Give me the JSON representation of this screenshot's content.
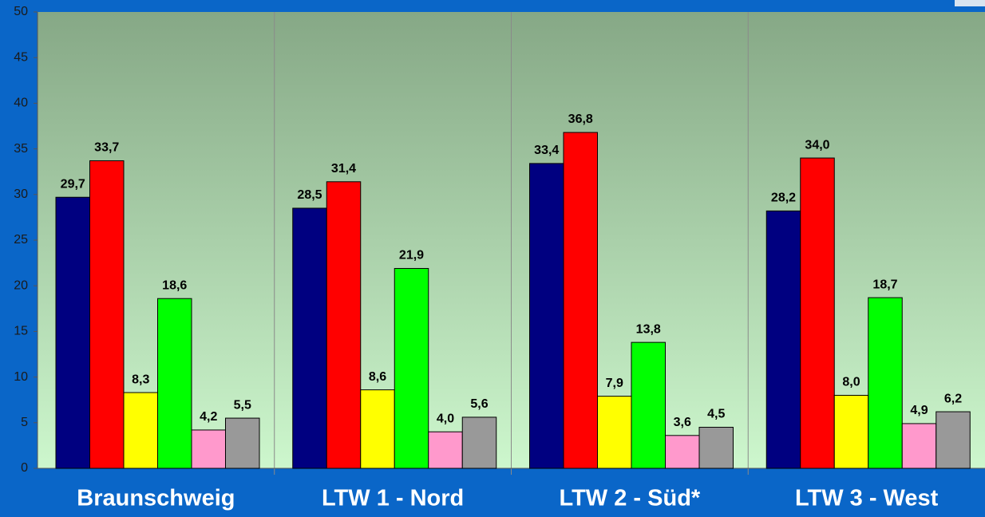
{
  "chart_data": {
    "type": "bar",
    "categories": [
      "Braunschweig",
      "LTW 1 - Nord",
      "LTW 2 - Süd*",
      "LTW 3 - West"
    ],
    "series": [
      {
        "color": "#000080",
        "values": [
          29.7,
          28.5,
          33.4,
          28.2
        ],
        "value_labels": [
          "29,7",
          "28,5",
          "33,4",
          "28,2"
        ]
      },
      {
        "color": "#ff0000",
        "values": [
          33.7,
          31.4,
          36.8,
          34.0
        ],
        "value_labels": [
          "33,7",
          "31,4",
          "36,8",
          "34,0"
        ]
      },
      {
        "color": "#ffff00",
        "values": [
          8.3,
          8.6,
          7.9,
          8.0
        ],
        "value_labels": [
          "8,3",
          "8,6",
          "7,9",
          "8,0"
        ]
      },
      {
        "color": "#00ff00",
        "values": [
          18.6,
          21.9,
          13.8,
          18.7
        ],
        "value_labels": [
          "18,6",
          "21,9",
          "13,8",
          "18,7"
        ]
      },
      {
        "color": "#ff99cc",
        "values": [
          4.2,
          4.0,
          3.6,
          4.9
        ],
        "value_labels": [
          "4,2",
          "4,0",
          "3,6",
          "4,9"
        ]
      },
      {
        "color": "#999999",
        "values": [
          5.5,
          5.6,
          4.5,
          6.2
        ],
        "value_labels": [
          "5,5",
          "5,6",
          "4,5",
          "6,2"
        ]
      }
    ],
    "ylim": [
      0,
      50
    ],
    "yticks": [
      0,
      5,
      10,
      15,
      20,
      25,
      30,
      35,
      40,
      45,
      50
    ]
  }
}
